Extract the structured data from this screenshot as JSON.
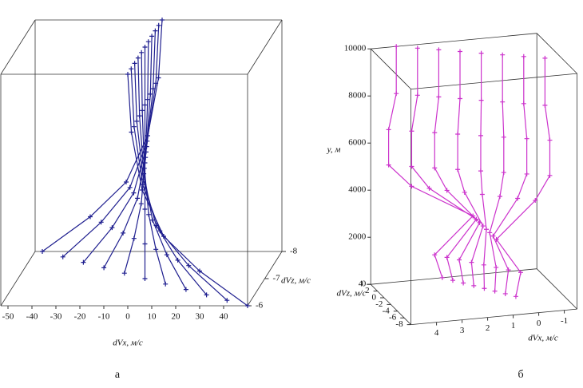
{
  "chart_data": [
    {
      "type": "scatter3d",
      "caption": "а",
      "xlabel": "dVx, м/с",
      "zlabel": "dVz, м/с",
      "color": "#1f1f8f",
      "xlim": [
        -53,
        50
      ],
      "ylim": [
        0,
        10000
      ],
      "zlim": [
        -8,
        -6
      ],
      "xticks": [
        -50,
        -40,
        -30,
        -20,
        -10,
        0,
        10,
        20,
        30,
        40
      ],
      "zticks": [
        -8,
        -7,
        -6
      ],
      "y": [
        0,
        1500,
        3000,
        5000,
        7500,
        10000
      ],
      "series": [
        {
          "x": [
            -50,
            -30,
            -15,
            -6,
            -1.5,
            0
          ],
          "z": -8
        },
        {
          "x": [
            -40,
            -24,
            -12,
            -4.8,
            -1.2,
            0
          ],
          "z": -7.8
        },
        {
          "x": [
            -30,
            -18,
            -9,
            -3.6,
            -0.9,
            0
          ],
          "z": -7.6
        },
        {
          "x": [
            -20,
            -12,
            -6,
            -2.4,
            -0.6,
            0
          ],
          "z": -7.4
        },
        {
          "x": [
            -10,
            -6,
            -3,
            -1.2,
            -0.3,
            0
          ],
          "z": -7.2
        },
        {
          "x": [
            0,
            0,
            0,
            0,
            0,
            0
          ],
          "z": -7
        },
        {
          "x": [
            10,
            6,
            3,
            1.2,
            0.3,
            0
          ],
          "z": -6.8
        },
        {
          "x": [
            20,
            12,
            6,
            2.4,
            0.6,
            0
          ],
          "z": -6.6
        },
        {
          "x": [
            30,
            18,
            9,
            3.6,
            0.9,
            0
          ],
          "z": -6.4
        },
        {
          "x": [
            40,
            24,
            12,
            4.8,
            1.2,
            0
          ],
          "z": -6.2
        },
        {
          "x": [
            50,
            30,
            15,
            6,
            1.5,
            0
          ],
          "z": -6
        }
      ]
    },
    {
      "type": "scatter3d",
      "caption": "б",
      "xlabel": "dVx, м/с",
      "ylabel": "y, м",
      "zlabel": "dVz, м/с",
      "color": "#cc33cc",
      "xlim": [
        -1.5,
        5
      ],
      "ylim": [
        0,
        10000
      ],
      "zlim": [
        -8,
        4
      ],
      "xticks": [
        4,
        3,
        2,
        1,
        0,
        -1
      ],
      "yticks": [
        0,
        2000,
        4000,
        6000,
        8000,
        10000
      ],
      "zticks": [
        4,
        2,
        0,
        -2,
        -4,
        -6,
        -8
      ],
      "y": [
        0,
        1000,
        2500,
        4000,
        5000,
        6500,
        8000,
        10000
      ],
      "series": [
        {
          "x": [
            2.2,
            2.5,
            1,
            3.4,
            4.3,
            4.3,
            4,
            4
          ],
          "z": 4
        },
        {
          "x": [
            1.92,
            2.15,
            1,
            2.84,
            3.53,
            3.53,
            3.3,
            3.3
          ],
          "z": 3
        },
        {
          "x": [
            1.64,
            1.8,
            1,
            2.28,
            2.76,
            2.76,
            2.6,
            2.6
          ],
          "z": 2
        },
        {
          "x": [
            1.36,
            1.45,
            1,
            1.72,
            1.99,
            1.99,
            1.9,
            1.9
          ],
          "z": 1
        },
        {
          "x": [
            1.08,
            1.1,
            1,
            1.16,
            1.22,
            1.22,
            1.2,
            1.2
          ],
          "z": 0
        },
        {
          "x": [
            0.8,
            0.75,
            1,
            0.6,
            0.45,
            0.45,
            0.5,
            0.5
          ],
          "z": -1
        },
        {
          "x": [
            0.52,
            0.4,
            1,
            0.04,
            -0.32,
            -0.32,
            -0.2,
            -0.2
          ],
          "z": -2
        },
        {
          "x": [
            0.24,
            0.05,
            1,
            -0.52,
            -1.09,
            -1.09,
            -0.9,
            -0.9
          ],
          "z": -3
        }
      ]
    }
  ]
}
